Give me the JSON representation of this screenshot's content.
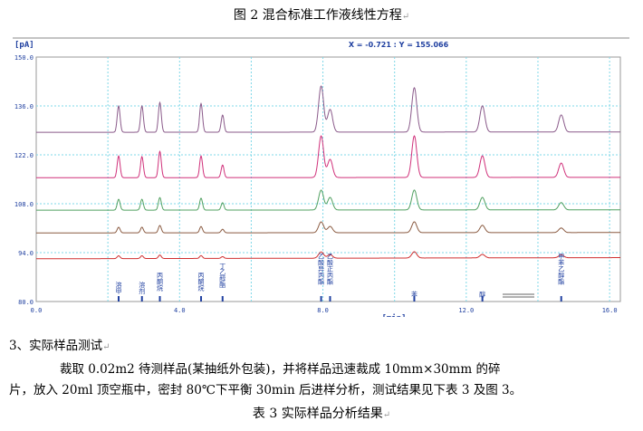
{
  "figure_caption": "图 2 混合标准工作液线性方程",
  "chart_data": {
    "type": "line",
    "ylabel": "[pA]",
    "xlabel": "[min]",
    "cursor_readout": "X = -0.721 : Y = 155.066",
    "ylim": [
      80,
      150
    ],
    "xlim": [
      0,
      16.3
    ],
    "yticks": [
      "150.0",
      "136.0",
      "122.0",
      "108.0",
      "94.0",
      "80.0"
    ],
    "xticks": [
      "0.0",
      "4.0",
      "8.0",
      "12.0",
      "16.0"
    ],
    "grid": true,
    "peak_times": [
      2.3,
      2.95,
      3.45,
      4.6,
      5.2,
      7.95,
      8.2,
      10.55,
      12.45,
      14.65
    ],
    "peak_labels": [
      "溶甲",
      "溶剂",
      "丙酮烷",
      "丙酮烷",
      "丁乙醇酯",
      "乙酸异丙酯",
      "乙酸正丙酯",
      "苯",
      "醇",
      "甲苯乙醇酯"
    ],
    "series": [
      {
        "color": "#8a5a8a",
        "baseline": 128.5,
        "amps": [
          7.5,
          7.5,
          8.5,
          8.2,
          4.9,
          13.2,
          6.5,
          12.7,
          7.5,
          4.9
        ]
      },
      {
        "color": "#d0307a",
        "baseline": 115.5,
        "amps": [
          6.2,
          6.0,
          7.5,
          6.2,
          3.6,
          11.9,
          5.2,
          11.9,
          6.2,
          4.1
        ]
      },
      {
        "color": "#50a060",
        "baseline": 106.2,
        "amps": [
          3.1,
          3.1,
          3.6,
          3.4,
          2.1,
          5.7,
          3.6,
          5.7,
          3.6,
          2.1
        ]
      },
      {
        "color": "#8a5a40",
        "baseline": 99.7,
        "amps": [
          1.6,
          1.6,
          2.1,
          1.8,
          1.0,
          3.1,
          1.8,
          3.1,
          2.1,
          1.3
        ]
      },
      {
        "color": "#d03030",
        "baseline": 92.4,
        "amps": [
          0.8,
          0.8,
          1.0,
          0.8,
          0.5,
          1.8,
          1.0,
          1.8,
          1.0,
          0.8
        ]
      }
    ]
  },
  "section_heading": "3、实际样品测试",
  "paragraph_line1": "裁取  0.02m2  待测样品(某抽纸外包装)，并将样品迅速裁成  10mm×30mm  的碎",
  "paragraph_line2": "片，放入  20ml  顶空瓶中，密封 80℃下平衡  30min 后进样分析，测试结果见下表 3 及图 3。",
  "table_caption": "表 3 实际样品分析结果"
}
